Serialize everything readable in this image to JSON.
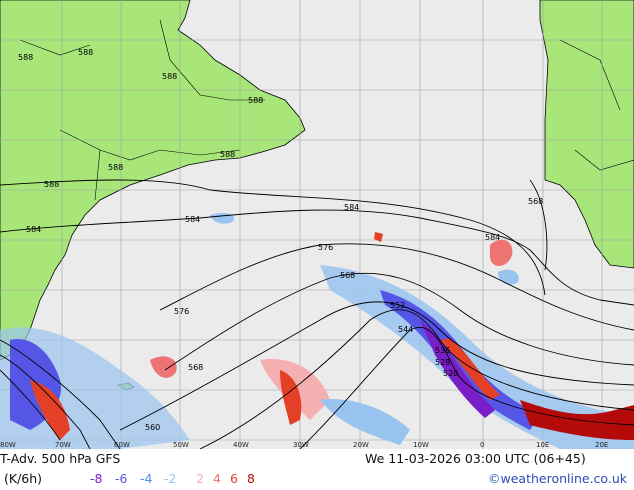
{
  "title": "T-Adv. 500 hPa GFS",
  "units": "(K/6h)",
  "datetime": "We 11-03-2026 03:00 UTC (06+45)",
  "credit": "©weatheronline.co.uk",
  "longitude_labels": [
    "80W",
    "70W",
    "60W",
    "50W",
    "40W",
    "30W",
    "20W",
    "10W",
    "0",
    "10E",
    "20E"
  ],
  "contour_labels": [
    "588",
    "588",
    "588",
    "588",
    "588",
    "588",
    "588",
    "584",
    "584",
    "584",
    "584",
    "576",
    "576",
    "568",
    "568",
    "560",
    "552",
    "544",
    "536",
    "528",
    "520",
    "568"
  ],
  "legend": [
    {
      "value": "-8",
      "color": "#7a1ec8"
    },
    {
      "value": "-6",
      "color": "#5656e6"
    },
    {
      "value": "-4",
      "color": "#4d8ee8"
    },
    {
      "value": "-2",
      "color": "#9ac4f0"
    },
    {
      "value": "2",
      "color": "#f4b0b0"
    },
    {
      "value": "4",
      "color": "#ee7474"
    },
    {
      "value": "6",
      "color": "#e44028"
    },
    {
      "value": "8",
      "color": "#b40a0a"
    }
  ],
  "colors": {
    "land": "#a8e67a",
    "ocean": "#ebebeb",
    "grid": "#a0a0a0",
    "contour": "#000000"
  }
}
